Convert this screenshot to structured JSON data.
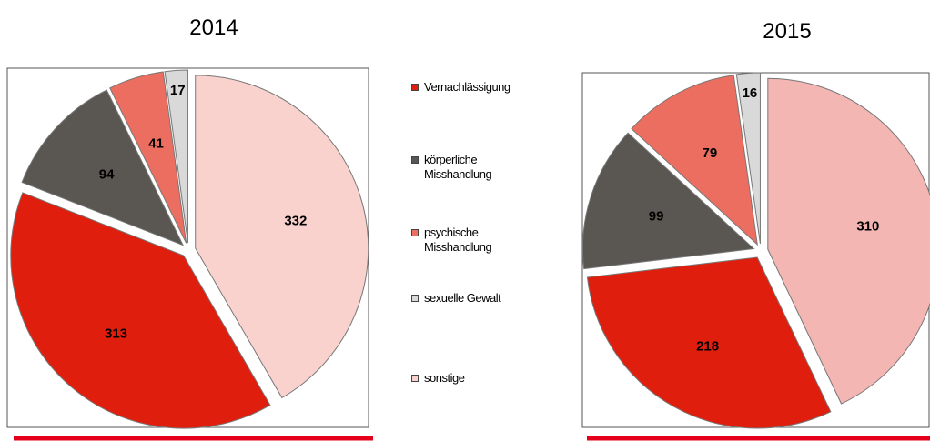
{
  "chart_data": [
    {
      "type": "pie",
      "title": "2014",
      "categories": [
        "Vernachlässigung",
        "körperliche Misshandlung",
        "psychische Misshandlung",
        "sexuelle Gewalt",
        "sonstige"
      ],
      "values": [
        313,
        94,
        41,
        17,
        332
      ],
      "colors": [
        "#e01e0e",
        "#5a5752",
        "#ec6e60",
        "#d9d9d9",
        "#f9d2ce"
      ]
    },
    {
      "type": "pie",
      "title": "2015",
      "categories": [
        "Vernachlässigung",
        "körperliche Misshandlung",
        "psychische Misshandlung",
        "sexuelle Gewalt",
        "sonstige"
      ],
      "values": [
        218,
        99,
        79,
        16,
        310
      ],
      "colors": [
        "#e01e0e",
        "#5a5752",
        "#ec6e60",
        "#d9d9d9",
        "#f4b6b2"
      ]
    }
  ]
}
